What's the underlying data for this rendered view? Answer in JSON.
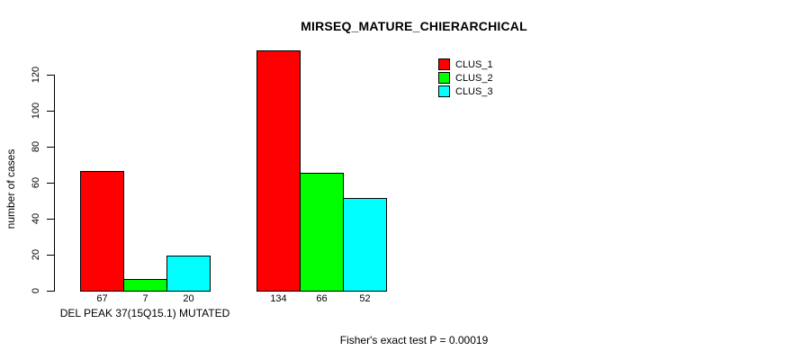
{
  "chart_data": {
    "type": "bar",
    "title": "MIRSEQ_MATURE_CHIERARCHICAL",
    "ylabel": "number of cases",
    "xlabel": "",
    "yticks": [
      0,
      20,
      40,
      60,
      80,
      100,
      120
    ],
    "axis_range": [
      0,
      120
    ],
    "grid": false,
    "legend_position": "top-right",
    "categories": [
      "DEL PEAK 37(15Q15.1) MUTATED",
      ""
    ],
    "groups": [
      {
        "label": "DEL PEAK 37(15Q15.1) MUTATED",
        "values": [
          67,
          7,
          20
        ]
      },
      {
        "label": "",
        "values": [
          134,
          66,
          52
        ]
      }
    ],
    "series": [
      {
        "name": "CLUS_1",
        "color": "#FF0000",
        "values": [
          67,
          134
        ]
      },
      {
        "name": "CLUS_2",
        "color": "#00FF00",
        "values": [
          7,
          66
        ]
      },
      {
        "name": "CLUS_3",
        "color": "#00FFFF",
        "values": [
          20,
          52
        ]
      }
    ],
    "bar_value_labels": [
      [
        67,
        7,
        20
      ],
      [
        134,
        66,
        52
      ]
    ],
    "annotation": "Fisher's exact test P = 0.00019",
    "colors": {
      "background": "#FFFFFF",
      "axis": "#000000",
      "bar_border": "#000000"
    }
  }
}
